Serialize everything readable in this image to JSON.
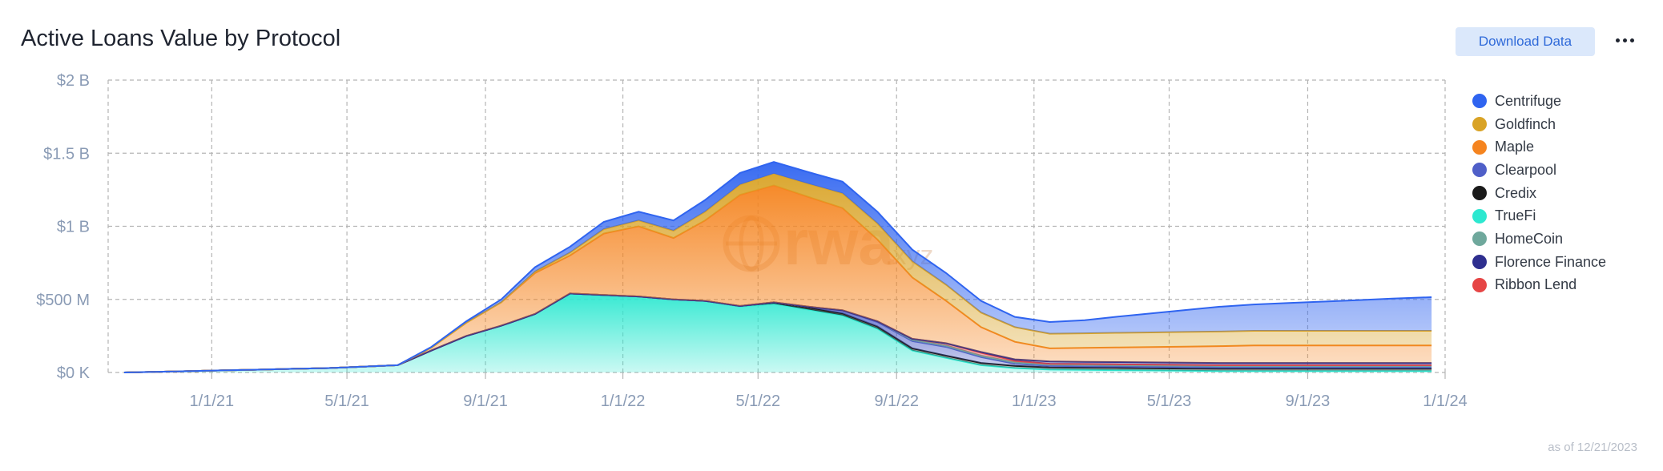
{
  "header": {
    "title": "Active Loans Value by Protocol",
    "download_label": "Download Data",
    "more_icon": "ellipsis-icon"
  },
  "footer": {
    "as_of": "as of 12/21/2023"
  },
  "watermark": {
    "text": "rwa",
    "suffix": ".xyz"
  },
  "colors": {
    "Centrifuge": "#2f64f0",
    "Goldfinch": "#d9a326",
    "Maple": "#f5841f",
    "Clearpool": "#4f5fc8",
    "Credix": "#1a1a1a",
    "TrueFi": "#2de8d0",
    "HomeCoin": "#6fa89c",
    "Florence Finance": "#2e2f8f",
    "Ribbon Lend": "#e64545"
  },
  "chart_data": {
    "type": "area",
    "stacked": true,
    "title": "Active Loans Value by Protocol",
    "xlabel": "",
    "ylabel": "",
    "x_range": [
      "2020-10-01",
      "2024-01-01"
    ],
    "ylim": [
      0,
      2000000000
    ],
    "y_ticks": [
      {
        "value": 0,
        "label": "$0 K"
      },
      {
        "value": 500000000,
        "label": "$500 M"
      },
      {
        "value": 1000000000,
        "label": "$1 B"
      },
      {
        "value": 1500000000,
        "label": "$1.5 B"
      },
      {
        "value": 2000000000,
        "label": "$2 B"
      }
    ],
    "x_ticks": [
      {
        "date": "2021-01-01",
        "label": "1/1/21"
      },
      {
        "date": "2021-05-01",
        "label": "5/1/21"
      },
      {
        "date": "2021-09-01",
        "label": "9/1/21"
      },
      {
        "date": "2022-01-01",
        "label": "1/1/22"
      },
      {
        "date": "2022-05-01",
        "label": "5/1/22"
      },
      {
        "date": "2022-09-01",
        "label": "9/1/22"
      },
      {
        "date": "2023-01-01",
        "label": "1/1/23"
      },
      {
        "date": "2023-05-01",
        "label": "5/1/23"
      },
      {
        "date": "2023-09-01",
        "label": "9/1/23"
      },
      {
        "date": "2024-01-01",
        "label": "1/1/24"
      }
    ],
    "grid": true,
    "legend_position": "right",
    "x": [
      "2020-10-15",
      "2020-11-15",
      "2020-12-15",
      "2021-01-15",
      "2021-02-15",
      "2021-03-15",
      "2021-04-15",
      "2021-05-15",
      "2021-06-15",
      "2021-07-15",
      "2021-08-15",
      "2021-09-15",
      "2021-10-15",
      "2021-11-15",
      "2021-12-15",
      "2022-01-15",
      "2022-02-15",
      "2022-03-15",
      "2022-04-15",
      "2022-05-15",
      "2022-06-15",
      "2022-07-15",
      "2022-08-15",
      "2022-09-15",
      "2022-10-15",
      "2022-11-15",
      "2022-12-15",
      "2023-01-15",
      "2023-02-15",
      "2023-03-15",
      "2023-04-15",
      "2023-05-15",
      "2023-06-15",
      "2023-07-15",
      "2023-08-15",
      "2023-09-15",
      "2023-10-15",
      "2023-11-15",
      "2023-12-15"
    ],
    "series": [
      {
        "name": "TrueFi",
        "values": [
          0,
          5,
          10,
          15,
          20,
          25,
          30,
          40,
          50,
          150,
          250,
          320,
          400,
          540,
          530,
          520,
          500,
          490,
          450,
          470,
          430,
          390,
          300,
          150,
          100,
          50,
          30,
          20,
          18,
          16,
          14,
          12,
          10,
          10,
          10,
          10,
          10,
          10,
          10
        ]
      },
      {
        "name": "Credix",
        "values": [
          0,
          0,
          0,
          0,
          0,
          0,
          0,
          0,
          0,
          0,
          0,
          0,
          0,
          0,
          0,
          0,
          0,
          0,
          5,
          10,
          15,
          15,
          15,
          15,
          15,
          15,
          15,
          15,
          15,
          15,
          15,
          15,
          15,
          15,
          15,
          15,
          15,
          15,
          15
        ]
      },
      {
        "name": "Clearpool",
        "values": [
          0,
          0,
          0,
          0,
          0,
          0,
          0,
          0,
          0,
          0,
          0,
          0,
          0,
          0,
          0,
          0,
          0,
          0,
          0,
          0,
          5,
          20,
          30,
          50,
          60,
          40,
          15,
          10,
          10,
          10,
          10,
          10,
          10,
          10,
          10,
          10,
          10,
          10,
          10
        ]
      },
      {
        "name": "HomeCoin",
        "values": [
          0,
          0,
          0,
          0,
          0,
          0,
          0,
          0,
          0,
          0,
          0,
          0,
          0,
          0,
          0,
          0,
          0,
          0,
          0,
          0,
          0,
          0,
          5,
          10,
          10,
          10,
          10,
          10,
          10,
          10,
          10,
          10,
          10,
          10,
          10,
          10,
          10,
          10,
          10
        ]
      },
      {
        "name": "Ribbon Lend",
        "values": [
          0,
          0,
          0,
          0,
          0,
          0,
          0,
          0,
          0,
          0,
          0,
          0,
          0,
          0,
          0,
          0,
          0,
          0,
          0,
          0,
          0,
          0,
          0,
          5,
          15,
          20,
          10,
          5,
          5,
          5,
          5,
          5,
          5,
          5,
          5,
          5,
          5,
          5,
          5
        ]
      },
      {
        "name": "Florence Finance",
        "values": [
          0,
          0,
          0,
          0,
          0,
          0,
          0,
          0,
          0,
          0,
          0,
          0,
          0,
          0,
          0,
          0,
          0,
          0,
          0,
          0,
          0,
          0,
          0,
          0,
          0,
          5,
          10,
          15,
          15,
          15,
          15,
          15,
          15,
          15,
          15,
          15,
          15,
          15,
          15
        ]
      },
      {
        "name": "Maple",
        "values": [
          0,
          0,
          0,
          0,
          0,
          0,
          0,
          0,
          0,
          20,
          90,
          160,
          280,
          260,
          420,
          480,
          420,
          550,
          760,
          800,
          750,
          700,
          560,
          420,
          290,
          170,
          120,
          90,
          95,
          100,
          105,
          110,
          115,
          120,
          120,
          120,
          120,
          120,
          120
        ]
      },
      {
        "name": "Goldfinch",
        "values": [
          0,
          0,
          0,
          0,
          0,
          0,
          0,
          0,
          0,
          0,
          0,
          0,
          10,
          20,
          30,
          40,
          50,
          60,
          70,
          80,
          90,
          100,
          110,
          110,
          110,
          100,
          100,
          100,
          100,
          100,
          100,
          100,
          100,
          100,
          100,
          100,
          100,
          100,
          100
        ]
      },
      {
        "name": "Centrifuge",
        "values": [
          0,
          0,
          0,
          0,
          0,
          0,
          0,
          0,
          0,
          5,
          10,
          20,
          30,
          40,
          50,
          60,
          70,
          80,
          80,
          80,
          80,
          80,
          80,
          80,
          80,
          80,
          70,
          80,
          90,
          110,
          130,
          150,
          170,
          180,
          190,
          200,
          210,
          220,
          230
        ]
      }
    ],
    "units": "USD millions",
    "legend_order": [
      "Centrifuge",
      "Goldfinch",
      "Maple",
      "Clearpool",
      "Credix",
      "TrueFi",
      "HomeCoin",
      "Florence Finance",
      "Ribbon Lend"
    ]
  }
}
